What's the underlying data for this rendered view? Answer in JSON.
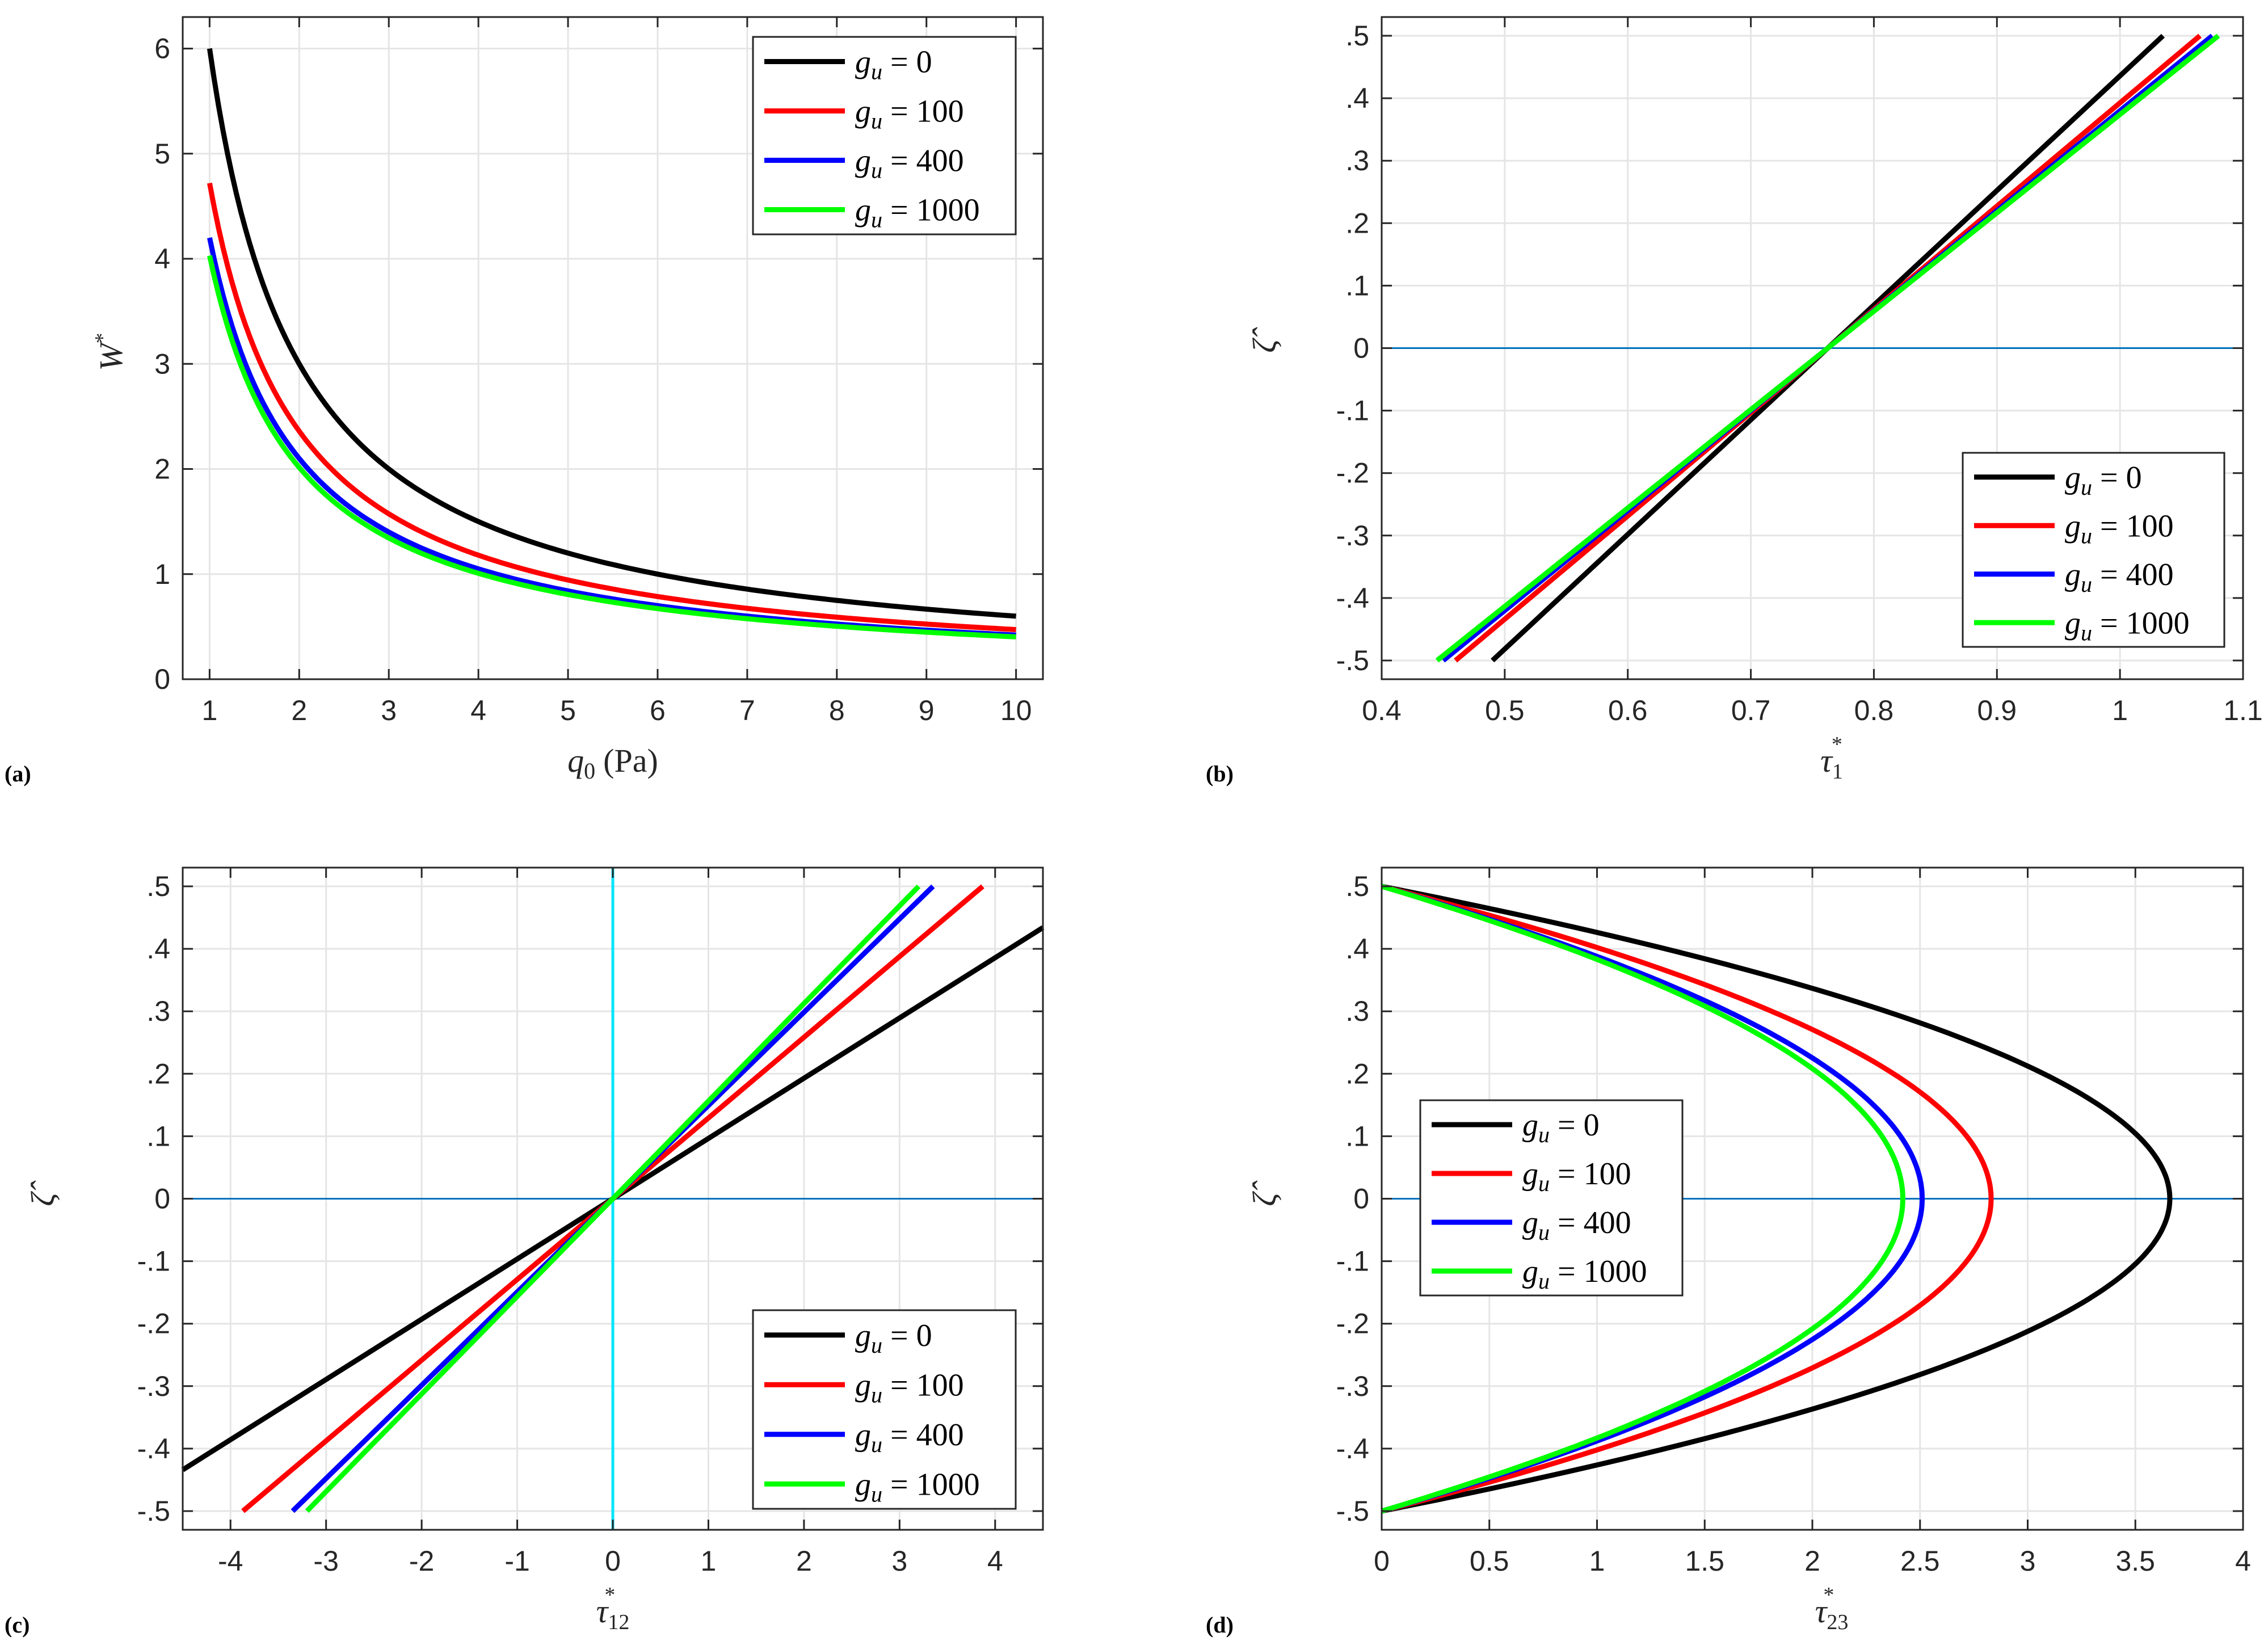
{
  "colors": {
    "gu0": "#000000",
    "gu100": "#ff0000",
    "gu400": "#0000ff",
    "gu1000": "#00ff00",
    "zero_line": "#0072bd",
    "vertical_line": "#00e5ff",
    "grid": "#e5e5e5",
    "axis": "#262626"
  },
  "chart_data": [
    {
      "panel": "(a)",
      "type": "line",
      "xlabel": "q0 (Pa)",
      "ylabel": "W*",
      "xlim": [
        0.7,
        10.3
      ],
      "ylim": [
        0,
        6.3
      ],
      "xticks": [
        1,
        2,
        3,
        4,
        5,
        6,
        7,
        8,
        9,
        10
      ],
      "yticks": [
        0,
        1,
        2,
        3,
        4,
        5,
        6
      ],
      "grid": true,
      "legend_position": "top-right",
      "series": [
        {
          "name": "g_u = 0",
          "color": "#000000",
          "formula": "W* = 6.0 / q0",
          "x_range": [
            1,
            10
          ]
        },
        {
          "name": "g_u = 100",
          "color": "#ff0000",
          "formula": "W* = 4.72 / q0",
          "x_range": [
            1,
            10
          ]
        },
        {
          "name": "g_u = 400",
          "color": "#0000ff",
          "formula": "W* = 4.2 / q0",
          "x_range": [
            1,
            10
          ]
        },
        {
          "name": "g_u = 1000",
          "color": "#00ff00",
          "formula": "W* = 4.03 / q0",
          "x_range": [
            1,
            10
          ]
        }
      ]
    },
    {
      "panel": "(b)",
      "type": "line",
      "xlabel": "τ1*",
      "ylabel": "ζ̂",
      "xlim": [
        0.4,
        1.1
      ],
      "ylim": [
        -0.53,
        0.53
      ],
      "xticks": [
        0.4,
        0.5,
        0.6,
        0.7,
        0.8,
        0.9,
        1,
        1.1
      ],
      "yticks": [
        -0.5,
        -0.4,
        -0.3,
        -0.2,
        -0.1,
        0,
        0.1,
        0.2,
        0.3,
        0.4,
        0.5
      ],
      "grid": true,
      "reference_line": "horizontal at 0",
      "legend_position": "bottom-right",
      "series": [
        {
          "name": "g_u = 0",
          "color": "#000000",
          "x": [
            0.49,
            1.035
          ],
          "y": [
            -0.5,
            0.5
          ]
        },
        {
          "name": "g_u = 100",
          "color": "#ff0000",
          "x": [
            0.46,
            1.065
          ],
          "y": [
            -0.5,
            0.5
          ]
        },
        {
          "name": "g_u = 400",
          "color": "#0000ff",
          "x": [
            0.45,
            1.075
          ],
          "y": [
            -0.5,
            0.5
          ]
        },
        {
          "name": "g_u = 1000",
          "color": "#00ff00",
          "x": [
            0.445,
            1.08
          ],
          "y": [
            -0.5,
            0.5
          ]
        }
      ]
    },
    {
      "panel": "(c)",
      "type": "line",
      "xlabel": "τ12*",
      "ylabel": "ζ̂",
      "xlim": [
        -4.5,
        4.5
      ],
      "ylim": [
        -0.53,
        0.53
      ],
      "xticks": [
        -4,
        -3,
        -2,
        -1,
        0,
        1,
        2,
        3,
        4
      ],
      "yticks": [
        -0.5,
        -0.4,
        -0.3,
        -0.2,
        -0.1,
        0,
        0.1,
        0.2,
        0.3,
        0.4,
        0.5
      ],
      "grid": true,
      "reference_line": "horizontal at 0, vertical at 0",
      "legend_position": "bottom-right",
      "series": [
        {
          "name": "g_u = 0",
          "color": "#000000",
          "x": [
            -4.5,
            4.5
          ],
          "y": [
            -0.434,
            0.434
          ]
        },
        {
          "name": "g_u = 100",
          "color": "#ff0000",
          "x": [
            -3.87,
            3.87
          ],
          "y": [
            -0.5,
            0.5
          ]
        },
        {
          "name": "g_u = 400",
          "color": "#0000ff",
          "x": [
            -3.35,
            3.35
          ],
          "y": [
            -0.5,
            0.5
          ]
        },
        {
          "name": "g_u = 1000",
          "color": "#00ff00",
          "x": [
            -3.2,
            3.2
          ],
          "y": [
            -0.5,
            0.5
          ]
        }
      ]
    },
    {
      "panel": "(d)",
      "type": "line",
      "xlabel": "τ23*",
      "ylabel": "ζ̂",
      "xlim": [
        0,
        4
      ],
      "ylim": [
        -0.53,
        0.53
      ],
      "xticks": [
        0,
        0.5,
        1,
        1.5,
        2,
        2.5,
        3,
        3.5,
        4
      ],
      "yticks": [
        -0.5,
        -0.4,
        -0.3,
        -0.2,
        -0.1,
        0,
        0.1,
        0.2,
        0.3,
        0.4,
        0.5
      ],
      "grid": true,
      "reference_line": "horizontal at 0",
      "legend_position": "center-left",
      "series": [
        {
          "name": "g_u = 0",
          "color": "#000000",
          "formula": "τ23* = 3.66 (1 - 4 ζ̂²)",
          "y_range": [
            -0.5,
            0.5
          ]
        },
        {
          "name": "g_u = 100",
          "color": "#ff0000",
          "formula": "τ23* = 2.83 (1 - 4 ζ̂²)",
          "y_range": [
            -0.5,
            0.5
          ]
        },
        {
          "name": "g_u = 400",
          "color": "#0000ff",
          "formula": "τ23* = 2.51 (1 - 4 ζ̂²)",
          "y_range": [
            -0.5,
            0.5
          ]
        },
        {
          "name": "g_u = 1000",
          "color": "#00ff00",
          "formula": "τ23* = 2.42 (1 - 4 ζ̂²)",
          "y_range": [
            -0.5,
            0.5
          ]
        }
      ]
    }
  ],
  "legend": {
    "prefix": "g",
    "subscript": "u",
    "entries": [
      "0",
      "100",
      "400",
      "1000"
    ]
  }
}
